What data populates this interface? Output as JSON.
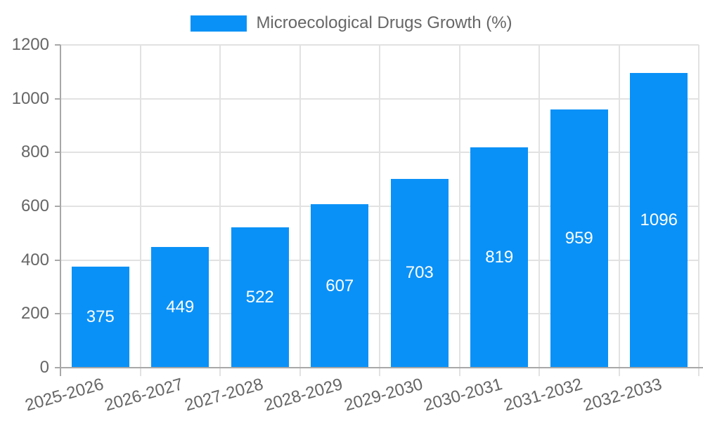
{
  "legend": {
    "label": "Microecological Drugs Growth (%)"
  },
  "chart_data": {
    "type": "bar",
    "title": "Microecological Drugs Growth (%)",
    "categories": [
      "2025-2026",
      "2026-2027",
      "2027-2028",
      "2028-2029",
      "2029-2030",
      "2030-2031",
      "2031-2032",
      "2032-2033"
    ],
    "values": [
      375,
      449,
      522,
      607,
      703,
      819,
      959,
      1096
    ],
    "xlabel": "",
    "ylabel": "",
    "ylim": [
      0,
      1200
    ],
    "yticks": [
      0,
      200,
      400,
      600,
      800,
      1000,
      1200
    ],
    "grid": true,
    "legend_position": "top",
    "colors": {
      "bar": "#0a91f7",
      "grid": "#e2e2e2",
      "axis": "#a8a8a8",
      "tick_text": "#666666",
      "value_label": "#ffffff",
      "background": "#ffffff"
    }
  }
}
